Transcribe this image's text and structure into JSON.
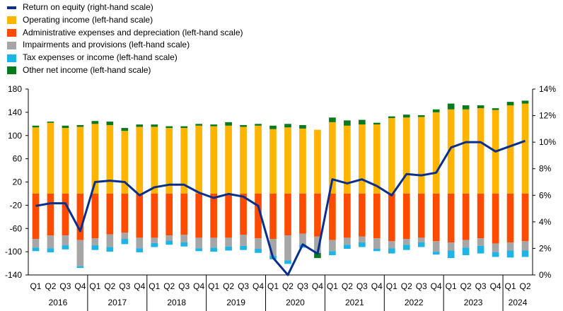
{
  "colors": {
    "roe": "#0a2e8c",
    "operating_income": "#ffb400",
    "admin_expenses": "#ff4b00",
    "impairments": "#a6a6a6",
    "tax": "#1eb4e6",
    "other": "#0a7a1e"
  },
  "legend": [
    {
      "key": "roe",
      "label": "Return on equity (right-hand scale)",
      "style": "line"
    },
    {
      "key": "operating_income",
      "label": "Operating income (left-hand scale)",
      "style": "box"
    },
    {
      "key": "admin_expenses",
      "label": "Administrative expenses and depreciation (left-hand scale)",
      "style": "box"
    },
    {
      "key": "impairments",
      "label": "Impairments and provisions (left-hand scale)",
      "style": "box"
    },
    {
      "key": "tax",
      "label": "Tax expenses or income (left-hand scale)",
      "style": "box"
    },
    {
      "key": "other",
      "label": "Other net income (left-hand scale)",
      "style": "box"
    }
  ],
  "chart_data": {
    "type": "bar",
    "stacked": true,
    "categories": [
      "Q1",
      "Q2",
      "Q3",
      "Q4",
      "Q1",
      "Q2",
      "Q3",
      "Q4",
      "Q1",
      "Q2",
      "Q3",
      "Q4",
      "Q1",
      "Q2",
      "Q3",
      "Q4",
      "Q1",
      "Q2",
      "Q3",
      "Q4",
      "Q1",
      "Q2",
      "Q3",
      "Q4",
      "Q1",
      "Q2",
      "Q3",
      "Q4",
      "Q1",
      "Q2",
      "Q3",
      "Q4",
      "Q1",
      "Q2"
    ],
    "year_groups": [
      {
        "label": "2016",
        "count": 4
      },
      {
        "label": "2017",
        "count": 4
      },
      {
        "label": "2018",
        "count": 4
      },
      {
        "label": "2019",
        "count": 4
      },
      {
        "label": "2020",
        "count": 4
      },
      {
        "label": "2021",
        "count": 4
      },
      {
        "label": "2022",
        "count": 4
      },
      {
        "label": "2023",
        "count": 4
      },
      {
        "label": "2024",
        "count": 2
      }
    ],
    "series": [
      {
        "name": "Operating income (left-hand scale)",
        "key": "operating_income",
        "values": [
          114,
          122,
          113,
          115,
          120,
          118,
          108,
          115,
          115,
          113,
          113,
          117,
          116,
          117,
          115,
          117,
          111,
          114,
          112,
          110,
          123,
          117,
          119,
          119,
          130,
          131,
          132,
          140,
          145,
          145,
          147,
          144,
          152,
          155
        ]
      },
      {
        "name": "Other net income (left-hand scale)",
        "key": "other",
        "values": [
          3,
          2,
          4,
          3,
          5,
          6,
          5,
          4,
          4,
          3,
          3,
          3,
          3,
          6,
          3,
          3,
          6,
          6,
          6,
          0,
          8,
          9,
          8,
          3,
          3,
          5,
          3,
          5,
          10,
          7,
          5,
          3,
          6,
          5
        ]
      },
      {
        "name": "Administrative expenses and depreciation (left-hand scale)",
        "key": "admin_expenses",
        "values": [
          -78,
          -72,
          -72,
          -80,
          -77,
          -70,
          -67,
          -76,
          -76,
          -72,
          -71,
          -76,
          -76,
          -76,
          -71,
          -77,
          -78,
          -72,
          -69,
          -74,
          -80,
          -76,
          -74,
          -77,
          -82,
          -78,
          -76,
          -82,
          -84,
          -80,
          -77,
          -86,
          -84,
          -82
        ]
      },
      {
        "name": "Impairments and provisions (left-hand scale)",
        "key": "impairments",
        "values": [
          -15,
          -22,
          -17,
          -45,
          -12,
          -22,
          -11,
          -18,
          -9,
          -9,
          -13,
          -18,
          -17,
          -15,
          -19,
          -18,
          -29,
          -43,
          -19,
          -28,
          -19,
          -12,
          -10,
          -18,
          -12,
          -10,
          -8,
          -18,
          -14,
          -13,
          -13,
          -15,
          -14,
          -16
        ]
      },
      {
        "name": "Tax expenses or income (left-hand scale)",
        "key": "tax",
        "values": [
          -6,
          -7,
          -7,
          -3,
          -8,
          -8,
          -9,
          -7,
          -7,
          -7,
          -7,
          -5,
          -7,
          -7,
          -7,
          -7,
          -6,
          -6,
          -5,
          0,
          -7,
          -7,
          -8,
          -4,
          -9,
          -9,
          -8,
          -5,
          -13,
          -13,
          -13,
          -8,
          -12,
          -11
        ]
      },
      {
        "name": "Other net income (left-hand scale)",
        "key": "other_negative",
        "values": [
          0,
          0,
          0,
          0,
          0,
          0,
          0,
          0,
          0,
          0,
          0,
          0,
          0,
          0,
          0,
          0,
          0,
          0,
          0,
          -9,
          0,
          0,
          0,
          0,
          0,
          0,
          0,
          0,
          0,
          0,
          0,
          0,
          0,
          0
        ]
      },
      {
        "name": "Return on equity (right-hand scale)",
        "key": "roe",
        "type": "line",
        "axis": "right",
        "values": [
          5.2,
          5.4,
          5.4,
          3.3,
          7.0,
          7.1,
          7.0,
          6.0,
          6.6,
          6.8,
          6.8,
          6.2,
          5.8,
          6.1,
          5.9,
          5.2,
          1.3,
          0.0,
          2.3,
          1.6,
          7.2,
          6.9,
          7.2,
          6.7,
          6.0,
          7.6,
          7.5,
          7.7,
          9.6,
          10.0,
          10.0,
          9.3,
          9.7,
          10.1
        ]
      }
    ],
    "ylim_left": [
      -140,
      180
    ],
    "yticks_left": [
      "180",
      "140",
      "100",
      "60",
      "20",
      "-20",
      "-60",
      "-100",
      "-140"
    ],
    "ylim_right": [
      0,
      14
    ],
    "yticks_right": [
      "14%",
      "12%",
      "10%",
      "8%",
      "6%",
      "4%",
      "2%",
      "0%"
    ],
    "grid": false,
    "legend_position": "top-left"
  }
}
